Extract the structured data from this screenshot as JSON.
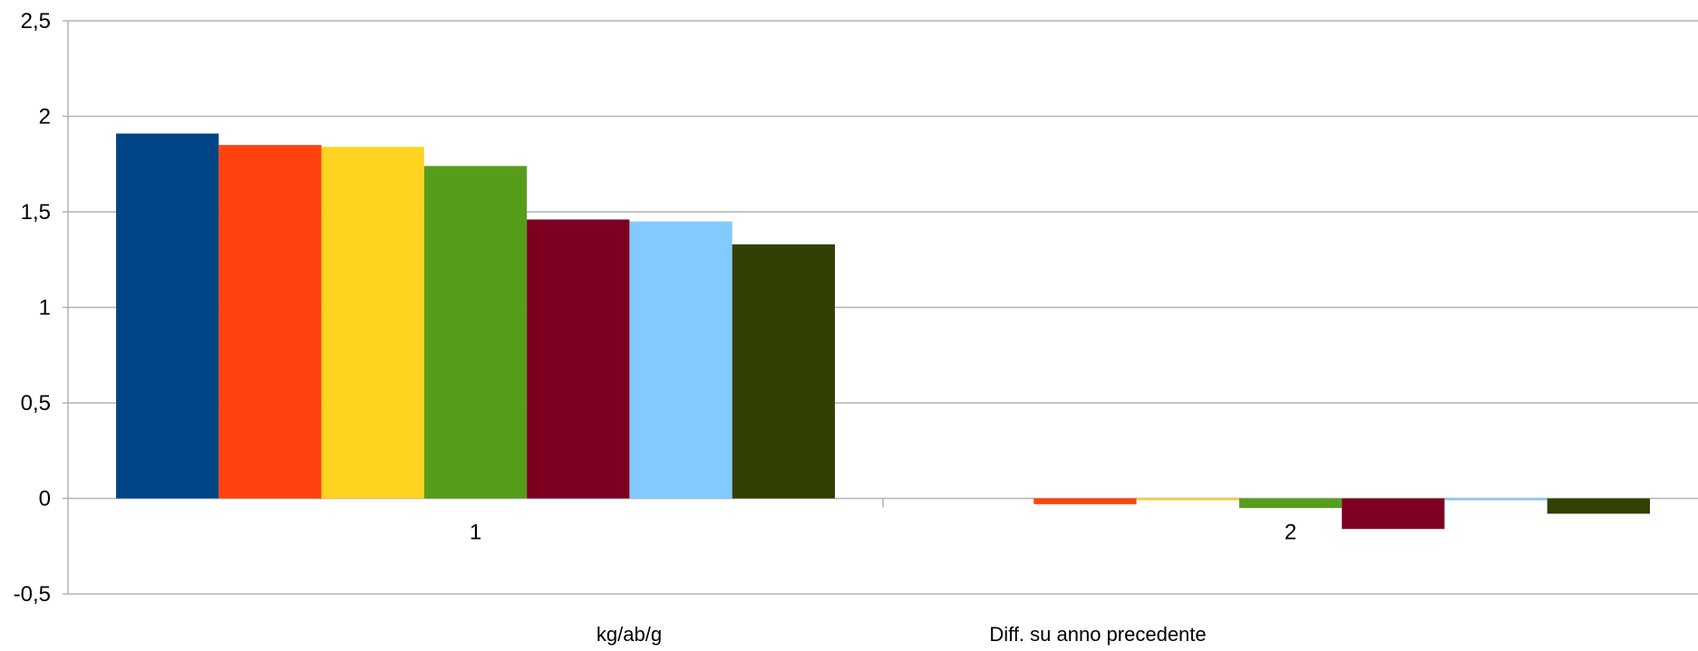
{
  "chart_data": {
    "type": "bar",
    "categories": [
      "1",
      "2"
    ],
    "ylim": [
      -0.5,
      2.5
    ],
    "y_ticks": [
      -0.5,
      0,
      0.5,
      1,
      1.5,
      2,
      2.5
    ],
    "y_tick_labels": [
      "-0,5",
      "0",
      "0,5",
      "1",
      "1,5",
      "2",
      "2,5"
    ],
    "grid": "horizontal",
    "legend": "none",
    "footer_labels": [
      "kg/ab/g",
      "Diff. su anno precedente"
    ],
    "series": [
      {
        "color": "#004586",
        "values": [
          1.91,
          0.0
        ]
      },
      {
        "color": "#ff420e",
        "values": [
          1.85,
          -0.03
        ]
      },
      {
        "color": "#ffd320",
        "values": [
          1.84,
          -0.01
        ]
      },
      {
        "color": "#579d1c",
        "values": [
          1.74,
          -0.05
        ]
      },
      {
        "color": "#7e0021",
        "values": [
          1.46,
          -0.16
        ]
      },
      {
        "color": "#83caff",
        "values": [
          1.45,
          -0.01
        ]
      },
      {
        "color": "#314004",
        "values": [
          1.33,
          -0.08
        ]
      }
    ]
  }
}
